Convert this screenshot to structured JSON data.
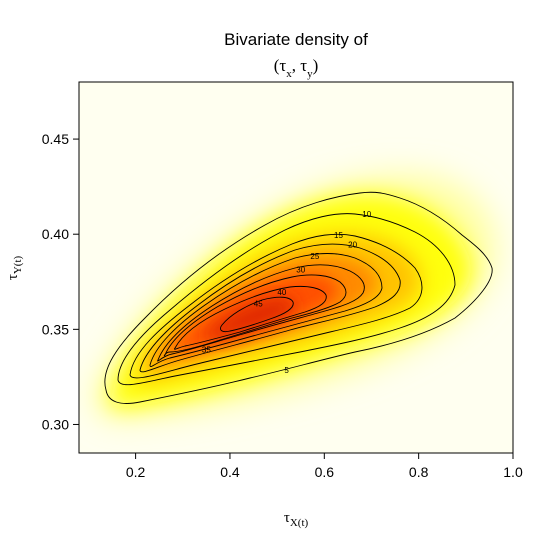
{
  "chart_data": {
    "type": "heatmap",
    "title": "Bivariate density of",
    "subtitle_parts": [
      "(τ",
      "x",
      ", τ",
      "y",
      ")"
    ],
    "xlabel": {
      "base": "τ",
      "sub": "X(t)"
    },
    "ylabel": {
      "base": "τ",
      "sub": "Y(t)"
    },
    "xlim": [
      0.08,
      1.0
    ],
    "ylim": [
      0.285,
      0.48
    ],
    "xticks": [
      0.2,
      0.4,
      0.6,
      0.8,
      1.0
    ],
    "xtick_labels": [
      "0.2",
      "0.4",
      "0.6",
      "0.8",
      "1.0"
    ],
    "yticks": [
      0.3,
      0.35,
      0.4,
      0.45
    ],
    "ytick_labels": [
      "0.30",
      "0.35",
      "0.40",
      "0.45"
    ],
    "color_scale": [
      "#fffff2",
      "#ffff00",
      "#ff9900",
      "#dd2200"
    ],
    "density_peak": {
      "x": 0.45,
      "y": 0.357,
      "value": 46
    },
    "contour_levels": [
      5,
      10,
      15,
      20,
      25,
      30,
      35,
      40,
      45
    ],
    "contour_labels": [
      {
        "level": "5",
        "x": 0.52,
        "y": 0.3285
      },
      {
        "level": "10",
        "x": 0.69,
        "y": 0.4105
      },
      {
        "level": "15",
        "x": 0.63,
        "y": 0.3995
      },
      {
        "level": "20",
        "x": 0.66,
        "y": 0.3945
      },
      {
        "level": "25",
        "x": 0.58,
        "y": 0.3885
      },
      {
        "level": "30",
        "x": 0.55,
        "y": 0.3815
      },
      {
        "level": "40",
        "x": 0.51,
        "y": 0.3695
      },
      {
        "level": "45",
        "x": 0.46,
        "y": 0.3635
      },
      {
        "level": "35",
        "x": 0.35,
        "y": 0.3395
      }
    ]
  }
}
